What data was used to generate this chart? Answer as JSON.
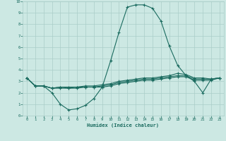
{
  "xlabel": "Humidex (Indice chaleur)",
  "x_values": [
    0,
    1,
    2,
    3,
    4,
    5,
    6,
    7,
    8,
    9,
    10,
    11,
    12,
    13,
    14,
    15,
    16,
    17,
    18,
    19,
    20,
    21,
    22,
    23
  ],
  "line1": [
    3.3,
    2.6,
    2.6,
    2.0,
    1.0,
    0.5,
    0.6,
    0.9,
    1.5,
    2.5,
    4.8,
    7.3,
    9.5,
    9.7,
    9.7,
    9.4,
    8.3,
    6.1,
    4.4,
    3.5,
    3.0,
    2.0,
    3.2,
    3.3
  ],
  "line2": [
    3.3,
    2.6,
    2.6,
    2.4,
    2.5,
    2.5,
    2.5,
    2.6,
    2.6,
    2.7,
    2.8,
    3.0,
    3.1,
    3.2,
    3.3,
    3.3,
    3.4,
    3.5,
    3.7,
    3.6,
    3.3,
    3.3,
    3.2,
    3.3
  ],
  "line3": [
    3.3,
    2.6,
    2.6,
    2.4,
    2.5,
    2.4,
    2.5,
    2.5,
    2.5,
    2.6,
    2.7,
    2.9,
    3.0,
    3.1,
    3.2,
    3.2,
    3.3,
    3.4,
    3.5,
    3.5,
    3.2,
    3.2,
    3.2,
    3.3
  ],
  "line4": [
    3.3,
    2.6,
    2.6,
    2.4,
    2.4,
    2.4,
    2.4,
    2.5,
    2.5,
    2.5,
    2.6,
    2.8,
    2.9,
    3.0,
    3.1,
    3.1,
    3.2,
    3.3,
    3.4,
    3.4,
    3.1,
    3.1,
    3.1,
    3.3
  ],
  "line_color": "#1a6b5f",
  "bg_color": "#cce8e3",
  "grid_color": "#aacdc8",
  "xlim": [
    -0.5,
    23.5
  ],
  "ylim": [
    0,
    10
  ],
  "yticks": [
    0,
    1,
    2,
    3,
    4,
    5,
    6,
    7,
    8,
    9,
    10
  ],
  "xticks": [
    0,
    1,
    2,
    3,
    4,
    5,
    6,
    7,
    8,
    9,
    10,
    11,
    12,
    13,
    14,
    15,
    16,
    17,
    18,
    19,
    20,
    21,
    22,
    23
  ]
}
